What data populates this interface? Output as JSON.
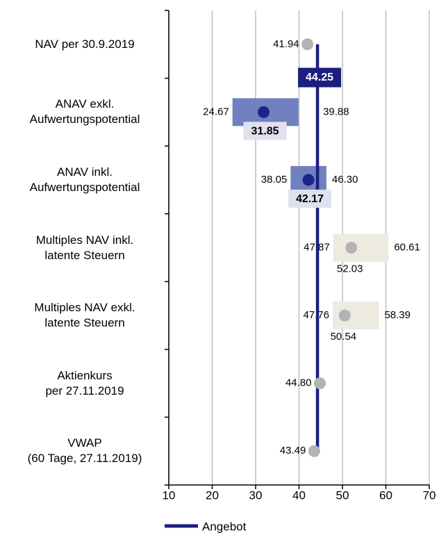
{
  "chart_data": {
    "type": "range",
    "categories": [
      "NAV per 30.9.2019",
      "ANAV exkl.\nAufwertungspotential",
      "ANAV inkl.\nAufwertungspotential",
      "Multiples NAV inkl.\nlatente Steuern",
      "Multiples NAV exkl.\nlatente Steuern",
      "Aktienkurs\nper 27.11.2019",
      "VWAP\n(60 Tage, 27.11.2019)"
    ],
    "low": [
      null,
      24.67,
      38.05,
      47.87,
      47.76,
      null,
      null
    ],
    "low_labels": [
      null,
      "24.67",
      "38.05",
      "47.87",
      "47.76",
      null,
      null
    ],
    "high": [
      null,
      39.88,
      46.3,
      60.61,
      58.39,
      null,
      null
    ],
    "high_labels": [
      null,
      "39.88",
      "46.30",
      "60.61",
      "58.39",
      null,
      null
    ],
    "point": [
      41.94,
      31.85,
      42.17,
      52.03,
      50.54,
      44.8,
      43.49
    ],
    "point_labels": [
      "41.94",
      "31.85",
      "42.17",
      "52.03",
      "50.54",
      "44.80",
      "43.49"
    ],
    "point_highlight": [
      false,
      true,
      true,
      false,
      false,
      false,
      false
    ],
    "range_colors": [
      null,
      "#7180bf",
      "#7180bf",
      "#edeae0",
      "#edeae0",
      null,
      null
    ],
    "point_colors": [
      "#b3b3b3",
      "#1c238a",
      "#1c238a",
      "#b3b3b3",
      "#b3b3b3",
      "#b3b3b3",
      "#b3b3b3"
    ],
    "offer": {
      "name": "Angebot",
      "value": 44.25,
      "label": "44.25",
      "color": "#1c1f7e"
    },
    "xlim": [
      10,
      70
    ],
    "xticks": [
      10,
      20,
      30,
      40,
      50,
      60,
      70
    ],
    "grid": true
  }
}
